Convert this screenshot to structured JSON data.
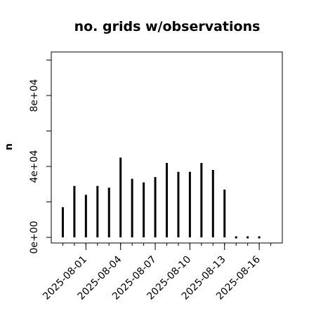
{
  "chart_data": {
    "type": "bar",
    "title": "no. grids w/observations",
    "xlabel": "",
    "ylabel": "n",
    "ylim": [
      0,
      100000
    ],
    "y_ticks": [
      {
        "value": 0,
        "label": "0e+00"
      },
      {
        "value": 40000,
        "label": "4e+04"
      },
      {
        "value": 80000,
        "label": "8e+04"
      }
    ],
    "x_ticks": [
      {
        "date": "2025-08-01",
        "label": "2025-08-01",
        "color": "#000000"
      },
      {
        "date": "2025-08-04",
        "label": "2025-08-04",
        "color": "#000000"
      },
      {
        "date": "2025-08-07",
        "label": "2025-08-07",
        "color": "#228B22"
      },
      {
        "date": "2025-08-10",
        "label": "2025-08-10",
        "color": "#000000"
      },
      {
        "date": "2025-08-13",
        "label": "2025-08-13",
        "color": "#000000"
      },
      {
        "date": "2025-08-16",
        "label": "2025-08-16",
        "color": "#000000"
      }
    ],
    "xlim": [
      "2025-07-29",
      "2025-08-18"
    ],
    "x": [
      "2025-07-30",
      "2025-07-31",
      "2025-08-01",
      "2025-08-02",
      "2025-08-03",
      "2025-08-04",
      "2025-08-05",
      "2025-08-06",
      "2025-08-07",
      "2025-08-08",
      "2025-08-09",
      "2025-08-10",
      "2025-08-11",
      "2025-08-12",
      "2025-08-13",
      "2025-08-14",
      "2025-08-15",
      "2025-08-16"
    ],
    "values": [
      17000,
      29000,
      24000,
      29000,
      28000,
      45000,
      33000,
      31000,
      34000,
      42000,
      37000,
      37000,
      42000,
      38000,
      27000,
      0,
      0,
      0
    ],
    "grid": false,
    "colors": {
      "bars": "#000000",
      "highlight_tick": "#228B22"
    }
  }
}
